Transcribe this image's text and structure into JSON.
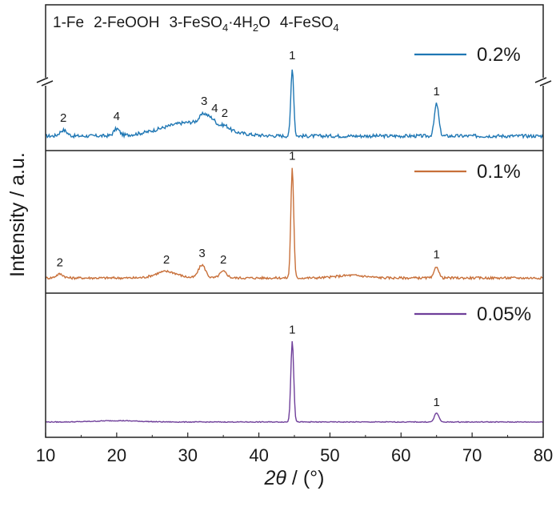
{
  "chart_data": {
    "type": "line",
    "xlabel_symbol": "2θ",
    "xlabel_unit": " / (°)",
    "ylabel": "Intensity / a.u.",
    "xlim": [
      10,
      80
    ],
    "xticks": [
      "10",
      "20",
      "30",
      "40",
      "50",
      "60",
      "70",
      "80"
    ],
    "phase_key": {
      "p1": "1-Fe",
      "p2": "2-FeOOH",
      "p3_pre": "3-FeSO",
      "p3_sub1": "4",
      "p3_mid": "·4H",
      "p3_sub2": "2",
      "p3_post": "O",
      "p4_pre": "4-FeSO",
      "p4_sub": "4"
    },
    "grid": false,
    "legend_position": "top-right of each panel",
    "y_axis_break": true,
    "series": [
      {
        "name": "0.2%",
        "color": "#1f77b4",
        "baseline": 0.1,
        "noise": 0.035,
        "peaks": [
          {
            "x": 12.5,
            "h": 0.06,
            "w": 0.5
          },
          {
            "x": 20.0,
            "h": 0.07,
            "w": 0.4
          },
          {
            "x": 30.5,
            "h": 0.14,
            "w": 4.0
          },
          {
            "x": 32.3,
            "h": 0.1,
            "w": 0.6
          },
          {
            "x": 33.5,
            "h": 0.06,
            "w": 0.5
          },
          {
            "x": 35.2,
            "h": 0.04,
            "w": 0.6
          },
          {
            "x": 44.7,
            "h": 0.7,
            "w": 0.2
          },
          {
            "x": 65.0,
            "h": 0.33,
            "w": 0.3
          }
        ],
        "peak_labels": [
          {
            "x": 12.5,
            "text": "2"
          },
          {
            "x": 20.0,
            "text": "4"
          },
          {
            "x": 32.3,
            "text": "3"
          },
          {
            "x": 33.8,
            "text": "4"
          },
          {
            "x": 35.2,
            "text": "2"
          },
          {
            "x": 44.7,
            "text": "1"
          },
          {
            "x": 65.0,
            "text": "1"
          }
        ]
      },
      {
        "name": "0.1%",
        "color": "#c8703a",
        "baseline": 0.08,
        "noise": 0.018,
        "peaks": [
          {
            "x": 12.0,
            "h": 0.03,
            "w": 0.5
          },
          {
            "x": 27.0,
            "h": 0.05,
            "w": 1.5
          },
          {
            "x": 32.0,
            "h": 0.1,
            "w": 0.5
          },
          {
            "x": 35.0,
            "h": 0.05,
            "w": 0.5
          },
          {
            "x": 44.7,
            "h": 0.85,
            "w": 0.2
          },
          {
            "x": 53.0,
            "h": 0.02,
            "w": 2.0
          },
          {
            "x": 65.0,
            "h": 0.09,
            "w": 0.3
          }
        ],
        "peak_labels": [
          {
            "x": 12.0,
            "text": "2"
          },
          {
            "x": 27.0,
            "text": "2"
          },
          {
            "x": 32.0,
            "text": "3"
          },
          {
            "x": 35.0,
            "text": "2"
          },
          {
            "x": 44.7,
            "text": "1"
          },
          {
            "x": 65.0,
            "text": "1"
          }
        ]
      },
      {
        "name": "0.05%",
        "color": "#6f3f9a",
        "baseline": 0.08,
        "noise": 0.006,
        "peaks": [
          {
            "x": 20.0,
            "h": 0.01,
            "w": 3.0
          },
          {
            "x": 44.7,
            "h": 0.62,
            "w": 0.2
          },
          {
            "x": 65.0,
            "h": 0.07,
            "w": 0.3
          }
        ],
        "peak_labels": [
          {
            "x": 44.7,
            "text": "1"
          },
          {
            "x": 65.0,
            "text": "1"
          }
        ]
      }
    ]
  }
}
